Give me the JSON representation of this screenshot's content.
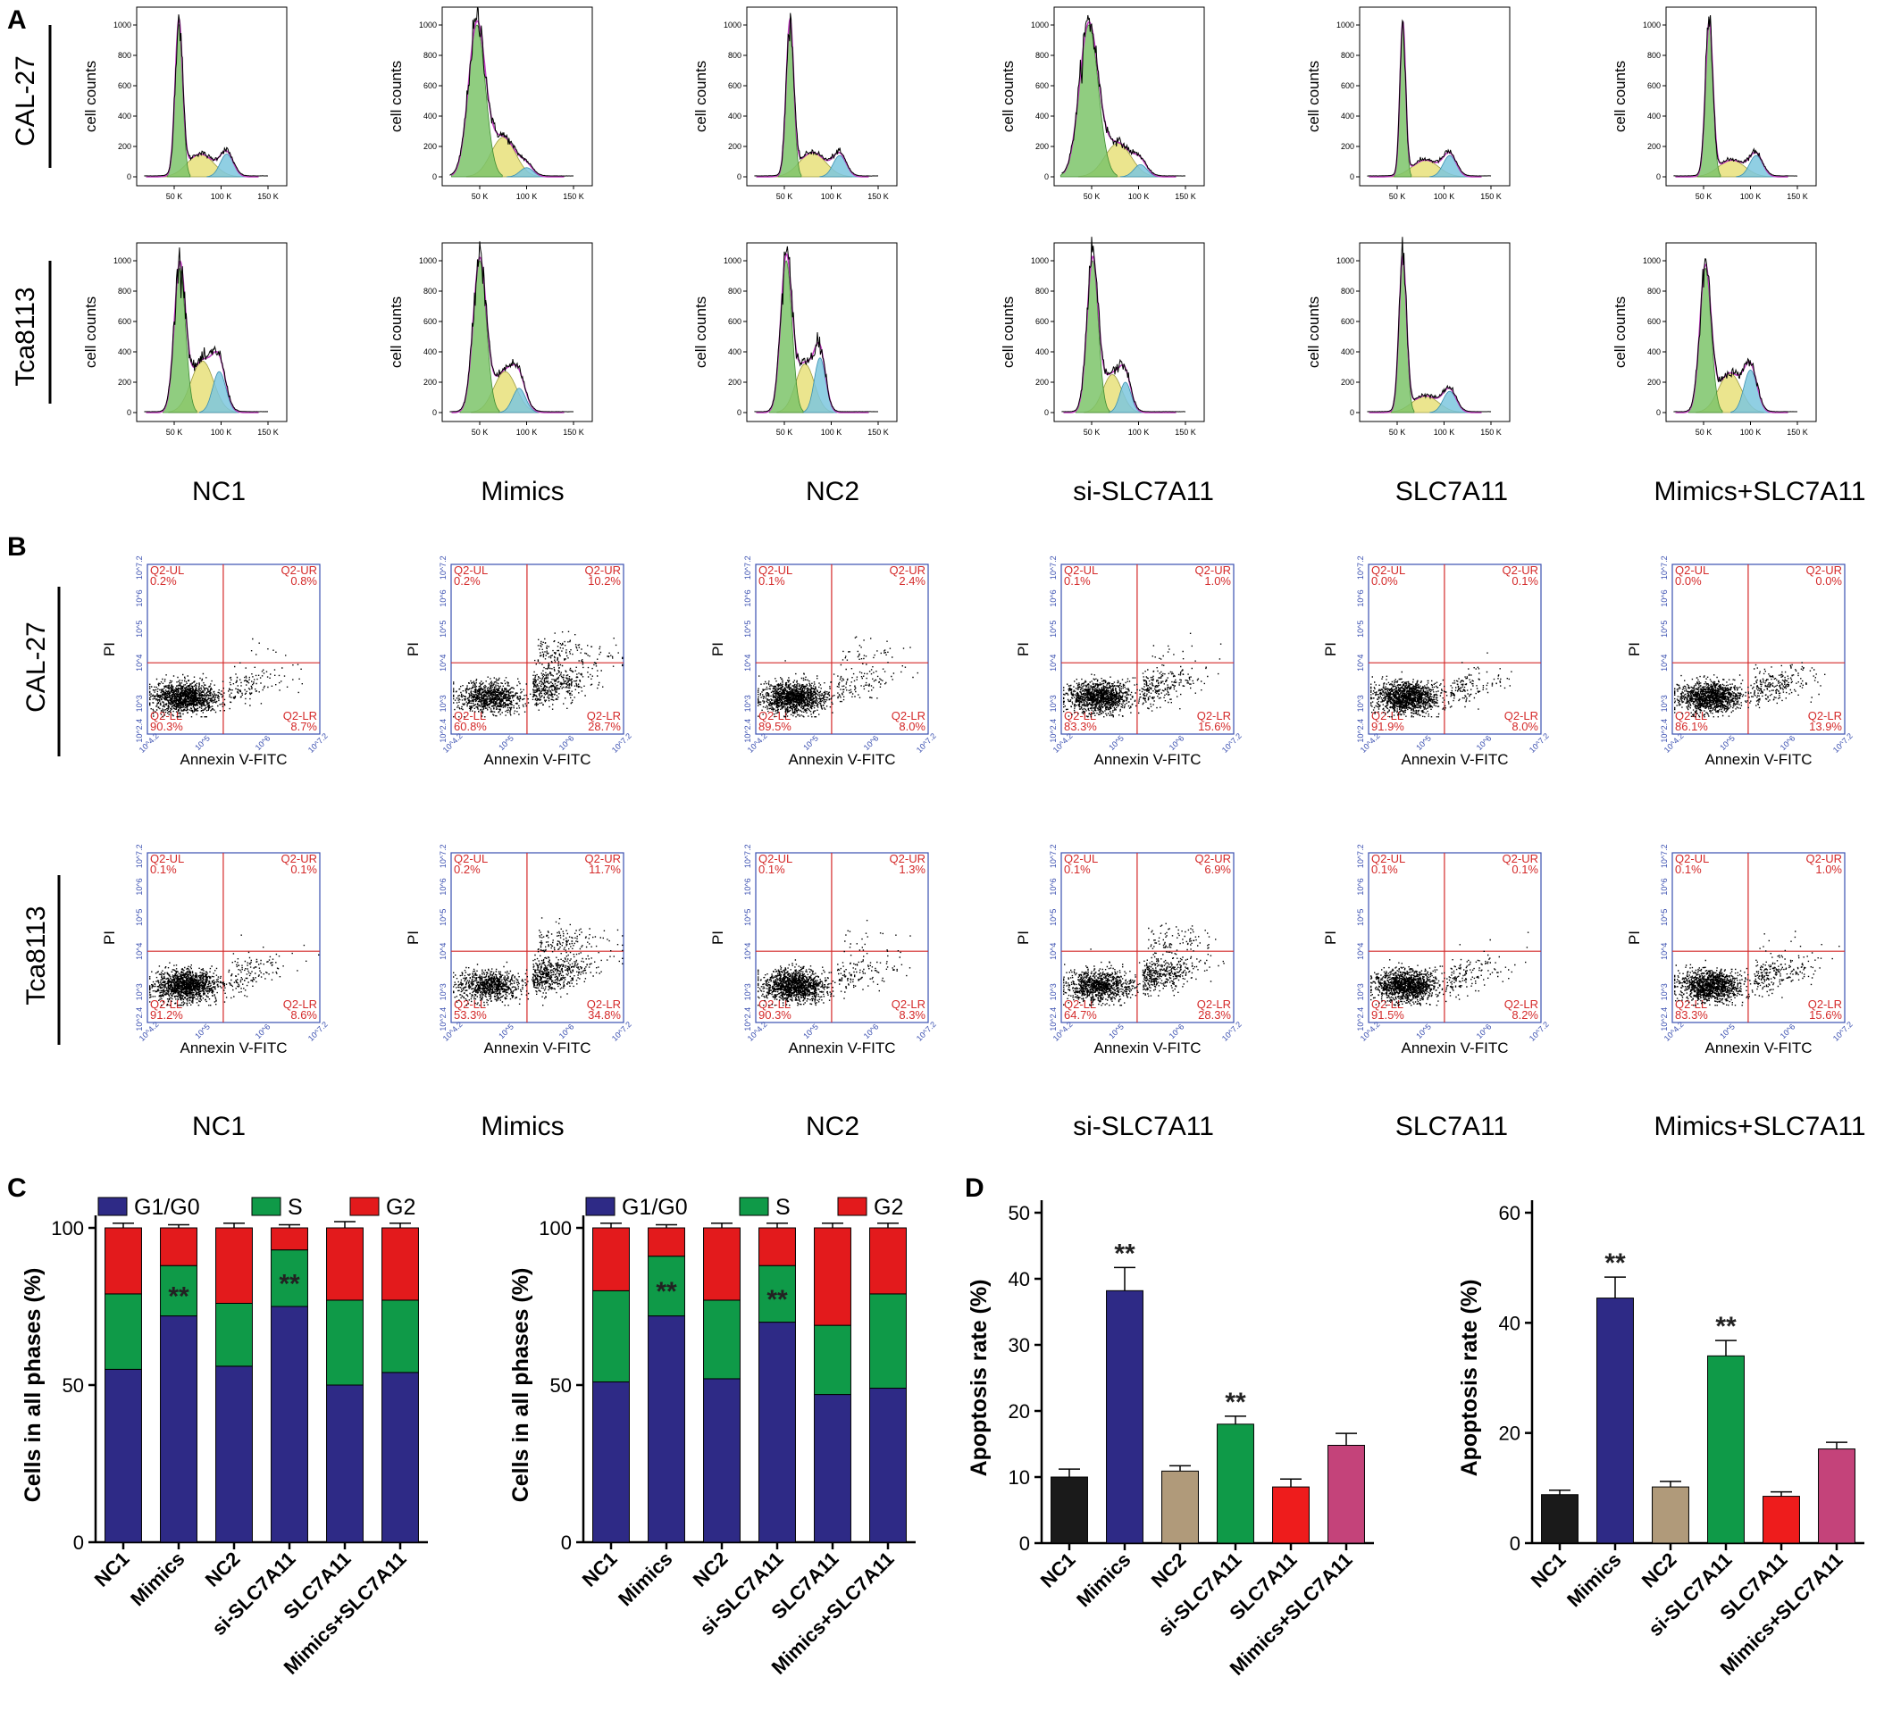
{
  "panels": {
    "A": "A",
    "B": "B",
    "C": "C",
    "D": "D"
  },
  "groups": [
    "NC1",
    "Mimics",
    "NC2",
    "si-SLC7A11",
    "SLC7A11",
    "Mimics+SLC7A11"
  ],
  "cell_lines": [
    "CAL-27",
    "Tca8113"
  ],
  "histogram": {
    "ylabel": "cell counts",
    "yticks": [
      "1000",
      "800",
      "600",
      "400",
      "200",
      "0"
    ],
    "xticks": [
      "50 K",
      "100 K",
      "150 K"
    ],
    "colors": {
      "g1": "#7dc46a",
      "s": "#e8e07a",
      "g2": "#7cc7de",
      "fit": "#c03cc0",
      "raw": "#000000"
    },
    "profiles": {
      "CAL-27": [
        {
          "g1": [
            55,
            1000,
            4
          ],
          "s": [
            78,
            150,
            14
          ],
          "g2": [
            106,
            150,
            7
          ]
        },
        {
          "g1": [
            47,
            1000,
            9
          ],
          "s": [
            75,
            260,
            13
          ],
          "g2": [
            100,
            60,
            7
          ]
        },
        {
          "g1": [
            56,
            1000,
            4
          ],
          "s": [
            80,
            160,
            14
          ],
          "g2": [
            109,
            140,
            7
          ]
        },
        {
          "g1": [
            47,
            1000,
            10
          ],
          "s": [
            78,
            220,
            14
          ],
          "g2": [
            102,
            80,
            7
          ]
        },
        {
          "g1": [
            56,
            1000,
            3
          ],
          "s": [
            80,
            110,
            14
          ],
          "g2": [
            106,
            140,
            7
          ]
        },
        {
          "g1": [
            56,
            1000,
            4
          ],
          "s": [
            80,
            110,
            14
          ],
          "g2": [
            106,
            140,
            7
          ]
        }
      ],
      "Tca8113": [
        {
          "g1": [
            56,
            950,
            6
          ],
          "s": [
            80,
            340,
            12
          ],
          "g2": [
            98,
            270,
            7
          ]
        },
        {
          "g1": [
            50,
            1000,
            7
          ],
          "s": [
            77,
            270,
            12
          ],
          "g2": [
            92,
            160,
            7
          ]
        },
        {
          "g1": [
            52,
            1000,
            6
          ],
          "s": [
            72,
            320,
            10
          ],
          "g2": [
            88,
            360,
            6
          ]
        },
        {
          "g1": [
            51,
            1000,
            6
          ],
          "s": [
            72,
            250,
            10
          ],
          "g2": [
            86,
            200,
            6
          ]
        },
        {
          "g1": [
            56,
            1000,
            4
          ],
          "s": [
            80,
            110,
            14
          ],
          "g2": [
            106,
            140,
            7
          ]
        },
        {
          "g1": [
            52,
            950,
            6
          ],
          "s": [
            78,
            260,
            12
          ],
          "g2": [
            100,
            280,
            7
          ]
        }
      ]
    }
  },
  "flow": {
    "xlabel": "Annexin V-FITC",
    "ylabel": "PI",
    "xticks": [
      "10^4.2",
      "10^5",
      "10^6",
      "10^7.2"
    ],
    "yticks": [
      "10^2.4",
      "10^3",
      "10^4",
      "10^5",
      "10^6",
      "10^7.2"
    ],
    "quadrant_names": {
      "UL": "Q2-UL",
      "UR": "Q2-UR",
      "LL": "Q2-LL",
      "LR": "Q2-LR"
    },
    "colors": {
      "border": "#3a4fb0",
      "gate": "#d42a2a",
      "dots": "#000000"
    },
    "values": {
      "CAL-27": [
        {
          "UL": "0.2%",
          "UR": "0.8%",
          "LL": "90.3%",
          "LR": "8.7%"
        },
        {
          "UL": "0.2%",
          "UR": "10.2%",
          "LL": "60.8%",
          "LR": "28.7%"
        },
        {
          "UL": "0.1%",
          "UR": "2.4%",
          "LL": "89.5%",
          "LR": "8.0%"
        },
        {
          "UL": "0.1%",
          "UR": "1.0%",
          "LL": "83.3%",
          "LR": "15.6%"
        },
        {
          "UL": "0.0%",
          "UR": "0.1%",
          "LL": "91.9%",
          "LR": "8.0%"
        },
        {
          "UL": "0.0%",
          "UR": "0.0%",
          "LL": "86.1%",
          "LR": "13.9%"
        }
      ],
      "Tca8113": [
        {
          "UL": "0.1%",
          "UR": "0.1%",
          "LL": "91.2%",
          "LR": "8.6%"
        },
        {
          "UL": "0.2%",
          "UR": "11.7%",
          "LL": "53.3%",
          "LR": "34.8%"
        },
        {
          "UL": "0.1%",
          "UR": "1.3%",
          "LL": "90.3%",
          "LR": "8.3%"
        },
        {
          "UL": "0.1%",
          "UR": "6.9%",
          "LL": "64.7%",
          "LR": "28.3%"
        },
        {
          "UL": "0.1%",
          "UR": "0.1%",
          "LL": "91.5%",
          "LR": "8.2%"
        },
        {
          "UL": "0.1%",
          "UR": "1.0%",
          "LL": "83.3%",
          "LR": "15.6%"
        }
      ]
    }
  },
  "chart_data": [
    {
      "type": "bar",
      "stacked": true,
      "panel": "C",
      "categories": [
        "NC1",
        "Mimics",
        "NC2",
        "si-SLC7A11",
        "SLC7A11",
        "Mimics+SLC7A11"
      ],
      "ylabel": "Cells in all phases (%)",
      "ylim": [
        0,
        100
      ],
      "yticks": [
        0,
        50,
        100
      ],
      "legend": "top",
      "series": [
        {
          "name": "G1/G0",
          "color": "#2e2a86",
          "values": [
            55,
            72,
            56,
            75,
            50,
            54
          ],
          "errors": [
            4,
            4,
            4,
            5,
            4,
            4
          ]
        },
        {
          "name": "S",
          "color": "#0f9a48",
          "values": [
            24,
            16,
            20,
            18,
            27,
            23
          ],
          "errors": [
            2,
            2,
            2,
            2,
            2,
            2
          ]
        },
        {
          "name": "G2",
          "color": "#e31a1c",
          "values": [
            21,
            12,
            24,
            7,
            23,
            23
          ],
          "errors": [
            1.5,
            1,
            1.5,
            1,
            2,
            1.5
          ]
        }
      ],
      "annotations": [
        {
          "category": "Mimics",
          "text": "**"
        },
        {
          "category": "si-SLC7A11",
          "text": "**"
        }
      ]
    },
    {
      "type": "bar",
      "stacked": true,
      "panel": "C",
      "categories": [
        "NC1",
        "Mimics",
        "NC2",
        "si-SLC7A11",
        "SLC7A11",
        "Mimics+SLC7A11"
      ],
      "ylabel": "Cells in all phases (%)",
      "ylim": [
        0,
        100
      ],
      "yticks": [
        0,
        50,
        100
      ],
      "legend": "top",
      "series": [
        {
          "name": "G1/G0",
          "color": "#2e2a86",
          "values": [
            51,
            72,
            52,
            70,
            47,
            49
          ],
          "errors": [
            4,
            4,
            5,
            5,
            4,
            5
          ]
        },
        {
          "name": "S",
          "color": "#0f9a48",
          "values": [
            29,
            19,
            25,
            18,
            22,
            30
          ],
          "errors": [
            2,
            2,
            2,
            2,
            2,
            2
          ]
        },
        {
          "name": "G2",
          "color": "#e31a1c",
          "values": [
            20,
            9,
            23,
            12,
            31,
            21
          ],
          "errors": [
            1.5,
            1,
            1.5,
            1.5,
            1.5,
            1.5
          ]
        }
      ],
      "annotations": [
        {
          "category": "Mimics",
          "text": "**"
        },
        {
          "category": "si-SLC7A11",
          "text": "**"
        }
      ]
    },
    {
      "type": "bar",
      "panel": "D",
      "categories": [
        "NC1",
        "Mimics",
        "NC2",
        "si-SLC7A11",
        "SLC7A11",
        "Mimics+SLC7A11"
      ],
      "ylabel": "Apoptosis rate (%)",
      "ylim": [
        0,
        50
      ],
      "yticks": [
        0,
        10,
        20,
        30,
        40,
        50
      ],
      "values": [
        10,
        38.2,
        10.9,
        18,
        8.5,
        14.8
      ],
      "errors": [
        1.2,
        3.5,
        0.8,
        1.2,
        1.2,
        1.8
      ],
      "colors": [
        "#1a1a1a",
        "#2e2a86",
        "#b09a7a",
        "#0f9a48",
        "#ee1c1c",
        "#c4437a"
      ],
      "annotations": [
        {
          "category": "Mimics",
          "text": "**"
        },
        {
          "category": "si-SLC7A11",
          "text": "**"
        }
      ]
    },
    {
      "type": "bar",
      "panel": "D",
      "categories": [
        "NC1",
        "Mimics",
        "NC2",
        "si-SLC7A11",
        "SLC7A11",
        "Mimics+SLC7A11"
      ],
      "ylabel": "Apoptosis rate (%)",
      "ylim": [
        0,
        60
      ],
      "yticks": [
        0,
        20,
        40,
        60
      ],
      "values": [
        8.8,
        44.5,
        10.2,
        34,
        8.5,
        17.1
      ],
      "errors": [
        0.8,
        3.8,
        1,
        2.8,
        0.8,
        1.2
      ],
      "colors": [
        "#1a1a1a",
        "#2e2a86",
        "#b09a7a",
        "#0f9a48",
        "#ee1c1c",
        "#c4437a"
      ],
      "annotations": [
        {
          "category": "Mimics",
          "text": "**"
        },
        {
          "category": "si-SLC7A11",
          "text": "**"
        }
      ]
    }
  ]
}
